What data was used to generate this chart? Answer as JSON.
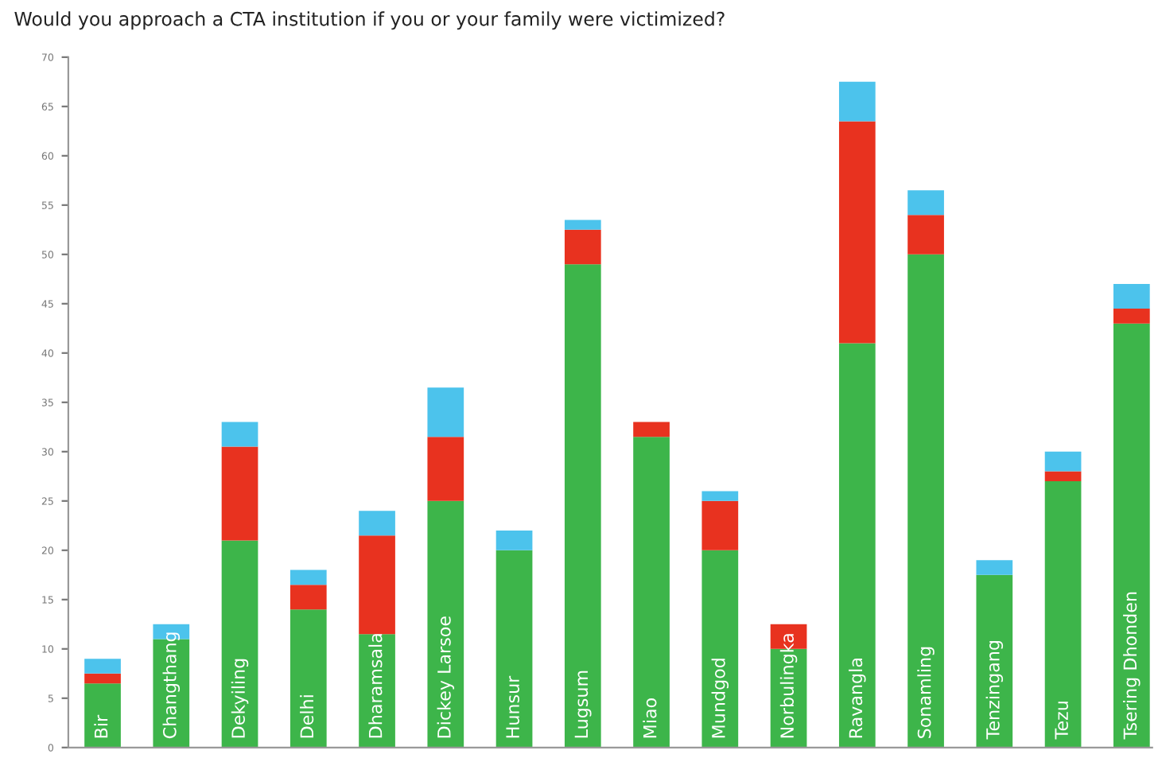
{
  "chart_data": {
    "type": "bar",
    "title": "Would you approach a CTA institution if you or your family were victimized?",
    "categories": [
      "Bir",
      "Changthang",
      "Dekyiling",
      "Delhi",
      "Dharamsala",
      "Dickey Larsoe",
      "Hunsur",
      "Lugsum",
      "Miao",
      "Mundgod",
      "Norbulingka",
      "Ravangla",
      "Sonamling",
      "Tenzingang",
      "Tezu",
      "Tsering Dhonden"
    ],
    "stacked": true,
    "series": [
      {
        "color": "#3db54a",
        "values": [
          6.5,
          11,
          21,
          14,
          11.5,
          25,
          20,
          49,
          31.5,
          20,
          10,
          41,
          50,
          17.5,
          27,
          43
        ]
      },
      {
        "color": "#e8321f",
        "values": [
          1,
          null,
          9.5,
          2.5,
          10,
          6.5,
          null,
          3.5,
          1.5,
          5,
          2.5,
          22.5,
          4,
          null,
          1,
          1.5
        ]
      },
      {
        "color": "#4cc3ec",
        "values": [
          1.5,
          1.5,
          2.5,
          1.5,
          2.5,
          5,
          2,
          1,
          null,
          1,
          null,
          4,
          2.5,
          1.5,
          2,
          2.5
        ]
      }
    ],
    "ylim": [
      0,
      70
    ],
    "yticks": [
      0,
      5,
      10,
      15,
      20,
      25,
      30,
      35,
      40,
      45,
      50,
      55,
      60,
      65,
      70
    ],
    "grid": false
  }
}
